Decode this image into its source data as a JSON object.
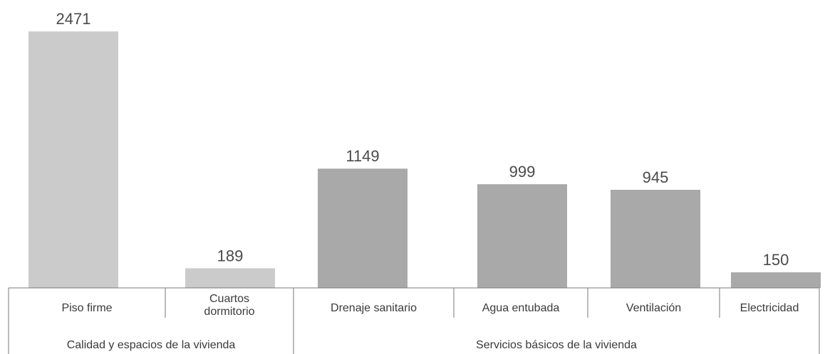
{
  "chart_data": {
    "type": "bar",
    "categories": [
      "Piso firme",
      "Cuartos dormitorio",
      "Drenaje sanitario",
      "Agua entubada",
      "Ventilación",
      "Electricidad"
    ],
    "category_lines": [
      [
        "Piso firme"
      ],
      [
        "Cuartos",
        "dormitorio"
      ],
      [
        "Drenaje sanitario"
      ],
      [
        "Agua entubada"
      ],
      [
        "Ventilación"
      ],
      [
        "Electricidad"
      ]
    ],
    "values": [
      2471,
      189,
      1149,
      999,
      945,
      150
    ],
    "groups": [
      {
        "label": "Calidad y espacios de la vivienda",
        "categories": [
          "Piso firme",
          "Cuartos dormitorio"
        ],
        "color": "#cbcbcb"
      },
      {
        "label": "Servicios básicos de la vivienda",
        "categories": [
          "Drenaje sanitario",
          "Agua entubada",
          "Ventilación",
          "Electricidad"
        ],
        "color": "#a9a9a9"
      }
    ],
    "ylim": [
      0,
      2500
    ],
    "grid": false,
    "title": "",
    "xlabel": "",
    "ylabel": ""
  }
}
